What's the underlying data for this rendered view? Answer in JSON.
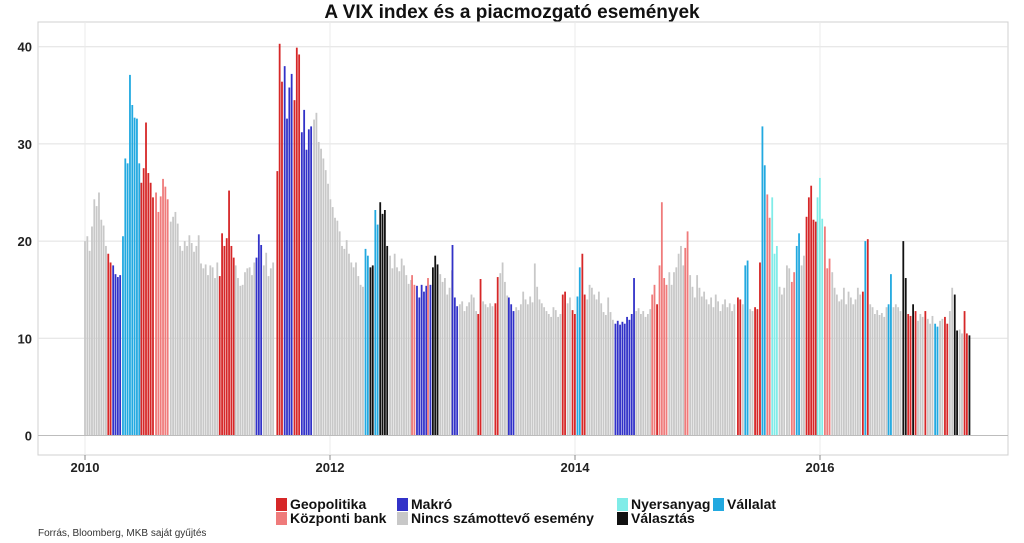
{
  "chart_data": {
    "type": "bar",
    "title": "A VIX index és a piacmozgató események",
    "xlabel": "",
    "ylabel": "",
    "ylim": [
      0,
      42
    ],
    "yticks": [
      0,
      10,
      20,
      30,
      40
    ],
    "x_range": [
      2009.5,
      2017.9
    ],
    "xticks": [
      2010,
      2012,
      2014,
      2016
    ],
    "grid": true,
    "legend_position": "bottom",
    "categories": [
      {
        "key": "G",
        "name": "Geopolitika",
        "color": "#d62728"
      },
      {
        "key": "K",
        "name": "Központi bank",
        "color": "#ef7b7b"
      },
      {
        "key": "M",
        "name": "Makró",
        "color": "#3232c8"
      },
      {
        "key": "N",
        "name": "Nincs számottevő esemény",
        "color": "#c8c8c8"
      },
      {
        "key": "Y",
        "name": "Nyersanyag",
        "color": "#80ece8"
      },
      {
        "key": "V",
        "name": "Vállalat",
        "color": "#22a9e0"
      },
      {
        "key": "S",
        "name": "Választás",
        "color": "#111111"
      }
    ],
    "segments": [
      {
        "start": 2010.0,
        "step": 0.019,
        "cat": "N",
        "values": [
          20,
          20.5,
          19,
          21.5,
          24.3,
          23.6,
          25,
          22.2,
          21.6,
          19.5
        ]
      },
      {
        "start": 2010.19,
        "step": 0.019,
        "cat": "G",
        "values": [
          18.7,
          17.8
        ]
      },
      {
        "start": 2010.23,
        "step": 0.019,
        "cat": "M",
        "values": [
          17.5,
          16.6,
          16.3,
          16.5
        ]
      },
      {
        "start": 2010.31,
        "step": 0.019,
        "cat": "V",
        "values": [
          20.5,
          28.5,
          28,
          37.1,
          34,
          32.7,
          32.6,
          28
        ]
      },
      {
        "start": 2010.46,
        "step": 0.019,
        "cat": "G",
        "values": [
          26,
          27.5,
          32.2,
          27,
          26,
          24.5
        ]
      },
      {
        "start": 2010.58,
        "step": 0.019,
        "cat": "K",
        "values": [
          25,
          23,
          24.6,
          26.4,
          25.6,
          24.3
        ]
      },
      {
        "start": 2010.7,
        "step": 0.019,
        "cat": "N",
        "values": [
          22,
          22.5,
          23,
          21.8,
          19.5,
          19,
          20,
          19.5,
          20.6,
          19.8,
          18.9,
          19.5,
          20.6,
          17.7,
          17.2,
          17.6,
          16.5,
          17.5,
          17.3,
          16.2,
          17.8
        ]
      },
      {
        "start": 2011.1,
        "step": 0.019,
        "cat": "G",
        "values": [
          16.4,
          20.8,
          19.5,
          20.3,
          25.2,
          19.5,
          18.3
        ]
      },
      {
        "start": 2011.23,
        "step": 0.019,
        "cat": "N",
        "values": [
          17.5,
          16.2,
          15.4,
          15.5,
          16.8,
          17.2,
          17.3,
          16.5,
          17.8
        ]
      },
      {
        "start": 2011.4,
        "step": 0.019,
        "cat": "M",
        "values": [
          18.3,
          20.7,
          19.6
        ]
      },
      {
        "start": 2011.46,
        "step": 0.019,
        "cat": "N",
        "values": [
          17.5,
          18.8,
          16.4,
          17.2,
          17.8
        ]
      },
      {
        "start": 2011.57,
        "step": 0.019,
        "cat": "G",
        "values": [
          27.2,
          40.3,
          36.4
        ]
      },
      {
        "start": 2011.63,
        "step": 0.019,
        "cat": "M",
        "values": [
          38,
          32.6,
          35.8,
          37.2
        ]
      },
      {
        "start": 2011.71,
        "step": 0.019,
        "cat": "G",
        "values": [
          34.5,
          39.9,
          39.2
        ]
      },
      {
        "start": 2011.77,
        "step": 0.019,
        "cat": "M",
        "values": [
          31.2,
          33.5,
          29.4,
          31.5,
          31.8
        ]
      },
      {
        "start": 2011.87,
        "step": 0.019,
        "cat": "N",
        "values": [
          32.5,
          33.2,
          30.2,
          29.5,
          28.5,
          27.3,
          25.9,
          24.3,
          23.5,
          22.4,
          22.1,
          21,
          19.5,
          19.2,
          20.1,
          18.7,
          17.8,
          17.3,
          17.8,
          16.4,
          15.5,
          15.3
        ]
      },
      {
        "start": 2012.29,
        "step": 0.019,
        "cat": "V",
        "values": [
          19.2,
          18.5
        ]
      },
      {
        "start": 2012.33,
        "step": 0.019,
        "cat": "S",
        "values": [
          17.3,
          17.5
        ]
      },
      {
        "start": 2012.37,
        "step": 0.019,
        "cat": "V",
        "values": [
          23.2,
          21.7
        ]
      },
      {
        "start": 2012.41,
        "step": 0.019,
        "cat": "S",
        "values": [
          24,
          22.8,
          23.2,
          19.5
        ]
      },
      {
        "start": 2012.49,
        "step": 0.019,
        "cat": "N",
        "values": [
          18.5,
          17.2,
          18.7,
          17.3,
          16.9,
          18.2,
          17.5,
          16.5,
          15.6,
          16
        ]
      },
      {
        "start": 2012.67,
        "step": 0.019,
        "cat": "K",
        "values": [
          16.5,
          15.5
        ]
      },
      {
        "start": 2012.71,
        "step": 0.019,
        "cat": "M",
        "values": [
          15.4,
          14.2,
          15.5,
          14.8,
          15.4
        ]
      },
      {
        "start": 2012.8,
        "step": 0.019,
        "cat": "K",
        "values": [
          16.2
        ]
      },
      {
        "start": 2012.82,
        "step": 0.019,
        "cat": "M",
        "values": [
          15.5
        ]
      },
      {
        "start": 2012.84,
        "step": 0.019,
        "cat": "S",
        "values": [
          17.3,
          18.5,
          17.6
        ]
      },
      {
        "start": 2012.9,
        "step": 0.019,
        "cat": "N",
        "values": [
          16.6,
          15.8,
          16.2,
          14.5,
          15.2,
          17
        ]
      },
      {
        "start": 2013.0,
        "step": 0.019,
        "cat": "M",
        "values": [
          19.6,
          14.2,
          13.3
        ]
      },
      {
        "start": 2013.06,
        "step": 0.019,
        "cat": "N",
        "values": [
          13.5,
          13.8,
          12.8,
          13.3,
          13.7,
          14.5,
          14.2,
          12.8
        ]
      },
      {
        "start": 2013.21,
        "step": 0.019,
        "cat": "G",
        "values": [
          12.5,
          16.1
        ]
      },
      {
        "start": 2013.25,
        "step": 0.019,
        "cat": "N",
        "values": [
          13.8,
          13.5,
          13.2,
          13.6,
          13.3
        ]
      },
      {
        "start": 2013.35,
        "step": 0.019,
        "cat": "G",
        "values": [
          13.6,
          16.3
        ]
      },
      {
        "start": 2013.39,
        "step": 0.019,
        "cat": "N",
        "values": [
          16.7,
          17.8,
          15.8,
          14.4
        ]
      },
      {
        "start": 2013.46,
        "step": 0.019,
        "cat": "M",
        "values": [
          14.2,
          13.5,
          12.8
        ]
      },
      {
        "start": 2013.52,
        "step": 0.019,
        "cat": "N",
        "values": [
          13.2,
          12.9,
          13.5,
          14.8,
          14,
          13.5,
          14.3,
          13.7,
          17.7,
          15.3,
          14,
          13.6,
          13.2,
          12.8,
          12.5,
          12.2,
          13.2,
          12.9,
          12.2,
          12.5
        ]
      },
      {
        "start": 2013.9,
        "step": 0.019,
        "cat": "G",
        "values": [
          14.5,
          14.8
        ]
      },
      {
        "start": 2013.94,
        "step": 0.019,
        "cat": "N",
        "values": [
          13.6,
          14.2
        ]
      },
      {
        "start": 2013.98,
        "step": 0.019,
        "cat": "G",
        "values": [
          12.9,
          12.5
        ]
      },
      {
        "start": 2014.02,
        "step": 0.019,
        "cat": "V",
        "values": [
          14.3,
          17.3
        ]
      },
      {
        "start": 2014.06,
        "step": 0.019,
        "cat": "G",
        "values": [
          18.7,
          14.5
        ]
      },
      {
        "start": 2014.1,
        "step": 0.019,
        "cat": "N",
        "values": [
          14,
          15.5,
          15.2,
          14.5,
          14,
          14.8,
          13.6,
          12.7,
          12.4,
          14.2,
          12.7,
          11.9
        ]
      },
      {
        "start": 2014.33,
        "step": 0.019,
        "cat": "M",
        "values": [
          11.5,
          11.8,
          11.4,
          11.7,
          11.5,
          12.2,
          11.9,
          12.5,
          16.2
        ]
      },
      {
        "start": 2014.5,
        "step": 0.019,
        "cat": "N",
        "values": [
          12.8,
          13.1,
          12.5,
          12.8,
          12.2,
          12.5,
          13
        ]
      },
      {
        "start": 2014.63,
        "step": 0.019,
        "cat": "K",
        "values": [
          14.5,
          15.5
        ]
      },
      {
        "start": 2014.67,
        "step": 0.019,
        "cat": "G",
        "values": [
          13.5
        ]
      },
      {
        "start": 2014.69,
        "step": 0.019,
        "cat": "K",
        "values": [
          17.5,
          24,
          16.2,
          15.5
        ]
      },
      {
        "start": 2014.77,
        "step": 0.019,
        "cat": "N",
        "values": [
          16.8,
          15.5,
          16.8,
          17.3,
          18.7,
          19.5,
          17.5
        ]
      },
      {
        "start": 2014.9,
        "step": 0.019,
        "cat": "K",
        "values": [
          19.3,
          21
        ]
      },
      {
        "start": 2014.94,
        "step": 0.019,
        "cat": "N",
        "values": [
          16.5,
          15.3,
          14.2,
          16.5,
          15.2,
          14.3,
          14.8,
          14,
          13.5,
          14.2,
          13.2,
          14.5,
          13.8,
          12.8,
          13.5,
          14,
          13.2,
          13.6,
          12.8,
          13.5
        ]
      },
      {
        "start": 2015.33,
        "step": 0.019,
        "cat": "G",
        "values": [
          14.2,
          14
        ]
      },
      {
        "start": 2015.37,
        "step": 0.019,
        "cat": "N",
        "values": [
          13.5
        ]
      },
      {
        "start": 2015.39,
        "step": 0.019,
        "cat": "V",
        "values": [
          17.5,
          18
        ]
      },
      {
        "start": 2015.43,
        "step": 0.019,
        "cat": "N",
        "values": [
          13,
          12.8
        ]
      },
      {
        "start": 2015.47,
        "step": 0.019,
        "cat": "G",
        "values": [
          13.2,
          13
        ]
      },
      {
        "start": 2015.51,
        "step": 0.019,
        "cat": "G",
        "values": [
          17.8
        ]
      },
      {
        "start": 2015.53,
        "step": 0.019,
        "cat": "V",
        "values": [
          31.8,
          27.8
        ]
      },
      {
        "start": 2015.57,
        "step": 0.019,
        "cat": "K",
        "values": [
          24.8,
          22.4
        ]
      },
      {
        "start": 2015.61,
        "step": 0.019,
        "cat": "Y",
        "values": [
          24.5,
          18.7,
          19.5
        ]
      },
      {
        "start": 2015.67,
        "step": 0.019,
        "cat": "N",
        "values": [
          15.3,
          14.5,
          15.2
        ]
      },
      {
        "start": 2015.73,
        "step": 0.019,
        "cat": "N",
        "values": [
          17.5,
          17.2
        ]
      },
      {
        "start": 2015.77,
        "step": 0.019,
        "cat": "K",
        "values": [
          15.8,
          16.8
        ]
      },
      {
        "start": 2015.81,
        "step": 0.019,
        "cat": "V",
        "values": [
          19.5,
          20.8
        ]
      },
      {
        "start": 2015.85,
        "step": 0.019,
        "cat": "N",
        "values": [
          17.5,
          18.5
        ]
      },
      {
        "start": 2015.89,
        "step": 0.019,
        "cat": "G",
        "values": [
          22.5,
          24.5,
          25.7,
          22.2,
          22
        ]
      },
      {
        "start": 2015.98,
        "step": 0.019,
        "cat": "Y",
        "values": [
          24.5,
          26.5,
          22.3
        ]
      },
      {
        "start": 2016.04,
        "step": 0.019,
        "cat": "K",
        "values": [
          21.5,
          17.2,
          18.2
        ]
      },
      {
        "start": 2016.1,
        "step": 0.019,
        "cat": "N",
        "values": [
          16.8,
          15.2,
          14.5,
          13.8,
          14,
          15.2,
          13.5,
          14.8,
          14.2,
          13.5,
          14,
          15.2,
          14.5
        ]
      },
      {
        "start": 2016.35,
        "step": 0.019,
        "cat": "G",
        "values": [
          14.8
        ]
      },
      {
        "start": 2016.37,
        "step": 0.019,
        "cat": "V",
        "values": [
          20
        ]
      },
      {
        "start": 2016.39,
        "step": 0.019,
        "cat": "G",
        "values": [
          20.2
        ]
      },
      {
        "start": 2016.41,
        "step": 0.019,
        "cat": "N",
        "values": [
          13.5,
          13.2,
          12.5,
          12.9,
          12.4,
          12.6,
          12.2,
          13.2
        ]
      },
      {
        "start": 2016.56,
        "step": 0.019,
        "cat": "V",
        "values": [
          13.5,
          16.6
        ]
      },
      {
        "start": 2016.6,
        "step": 0.019,
        "cat": "N",
        "values": [
          13.2,
          13.5,
          13.2,
          12.8
        ]
      },
      {
        "start": 2016.68,
        "step": 0.019,
        "cat": "S",
        "values": [
          20
        ]
      },
      {
        "start": 2016.7,
        "step": 0.019,
        "cat": "S",
        "values": [
          16.2
        ]
      },
      {
        "start": 2016.72,
        "step": 0.019,
        "cat": "G",
        "values": [
          12.5,
          12.3
        ]
      },
      {
        "start": 2016.76,
        "step": 0.019,
        "cat": "S",
        "values": [
          13.5
        ]
      },
      {
        "start": 2016.78,
        "step": 0.019,
        "cat": "G",
        "values": [
          12.8
        ]
      },
      {
        "start": 2016.8,
        "step": 0.019,
        "cat": "N",
        "values": [
          11.8,
          12.5,
          12.2
        ]
      },
      {
        "start": 2016.86,
        "step": 0.019,
        "cat": "G",
        "values": [
          12.8
        ]
      },
      {
        "start": 2016.88,
        "step": 0.019,
        "cat": "N",
        "values": [
          12,
          11.5,
          12.3
        ]
      },
      {
        "start": 2016.94,
        "step": 0.019,
        "cat": "V",
        "values": [
          11.5,
          11.2
        ]
      },
      {
        "start": 2016.98,
        "step": 0.019,
        "cat": "N",
        "values": [
          11.8,
          12
        ]
      },
      {
        "start": 2017.02,
        "step": 0.019,
        "cat": "G",
        "values": [
          12.2,
          11.5
        ]
      },
      {
        "start": 2017.06,
        "step": 0.019,
        "cat": "N",
        "values": [
          12.8,
          15.2
        ]
      },
      {
        "start": 2017.1,
        "step": 0.019,
        "cat": "S",
        "values": [
          14.5,
          10.8
        ]
      },
      {
        "start": 2017.14,
        "step": 0.019,
        "cat": "N",
        "values": [
          10.9,
          10.5
        ]
      },
      {
        "start": 2017.18,
        "step": 0.019,
        "cat": "G",
        "values": [
          12.8,
          10.5
        ]
      },
      {
        "start": 2017.22,
        "step": 0.019,
        "cat": "S",
        "values": [
          10.3
        ]
      }
    ]
  },
  "legend": {
    "geopolitika": "Geopolitika",
    "kozponti_bank": "Központi bank",
    "makro": "Makró",
    "nincs": "Nincs számottevő esemény",
    "nyersanyag": "Nyersanyag",
    "vallalat": "Vállalat",
    "valasztas": "Választás"
  },
  "source_note": "Forrás, Bloomberg, MKB saját gyűjtés"
}
